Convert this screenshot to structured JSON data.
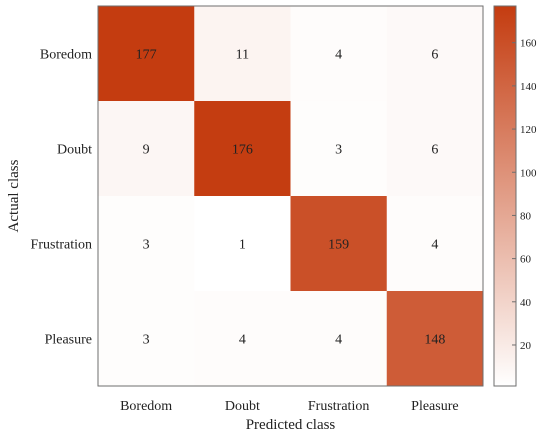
{
  "chart_data": {
    "type": "heatmap",
    "title": "",
    "xlabel": "Predicted class",
    "ylabel": "Actual class",
    "x_categories": [
      "Boredom",
      "Doubt",
      "Frustration",
      "Pleasure"
    ],
    "y_categories": [
      "Boredom",
      "Doubt",
      "Frustration",
      "Pleasure"
    ],
    "values": [
      [
        177,
        11,
        4,
        6
      ],
      [
        9,
        176,
        3,
        6
      ],
      [
        3,
        1,
        159,
        4
      ],
      [
        3,
        4,
        4,
        148
      ]
    ],
    "colorbar": {
      "min": 1,
      "max": 177,
      "ticks": [
        20,
        40,
        60,
        80,
        100,
        120,
        140,
        160
      ]
    },
    "colors": {
      "low": "#ffffff",
      "high": "#c43c10",
      "text": "#222222",
      "frame": "#6e6e6e"
    }
  }
}
